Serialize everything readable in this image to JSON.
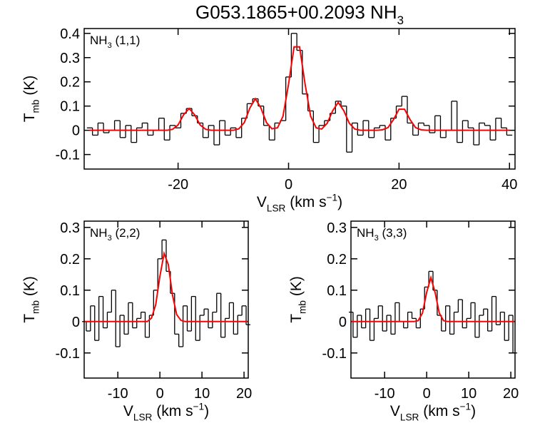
{
  "chart_data": [
    {
      "type": "line",
      "title": {
        "text": "G053.1865+00.2093 NH",
        "sub": "3"
      },
      "label": {
        "base": "NH",
        "sub": "3",
        "rest": " (1,1)"
      },
      "xlabel": {
        "base": "V",
        "sub": "LSR",
        "rest": " (km s",
        "sup": "−1",
        "end": ")"
      },
      "ylabel": {
        "base": "T",
        "sub": "mb",
        "rest": " (K)"
      },
      "xlim": [
        -37,
        41
      ],
      "xticks": [
        -20,
        0,
        20,
        40
      ],
      "ylim": [
        -0.16,
        0.42
      ],
      "yticks": [
        -0.1,
        0.0,
        0.1,
        0.2,
        0.3,
        0.4
      ],
      "x": [
        -36,
        -35,
        -34,
        -33,
        -32,
        -31,
        -30,
        -29,
        -28,
        -27,
        -26,
        -25,
        -24,
        -23,
        -22,
        -21,
        -20,
        -19,
        -18,
        -17,
        -16,
        -15,
        -14,
        -13,
        -12,
        -11,
        -10,
        -9,
        -8,
        -7,
        -6,
        -5,
        -4,
        -3,
        -2,
        -1,
        0,
        1,
        2,
        3,
        4,
        5,
        6,
        7,
        8,
        9,
        10,
        11,
        12,
        13,
        14,
        15,
        16,
        17,
        18,
        19,
        20,
        21,
        22,
        23,
        24,
        25,
        26,
        27,
        28,
        29,
        30,
        31,
        32,
        33,
        34,
        35,
        36,
        37,
        38,
        39,
        40
      ],
      "series": [
        {
          "color": "#000000",
          "step": true,
          "values": [
            0.01,
            -0.02,
            0.03,
            -0.01,
            0.0,
            0.04,
            -0.03,
            0.02,
            -0.05,
            0.01,
            0.03,
            -0.02,
            0.0,
            0.05,
            -0.04,
            0.02,
            0.01,
            0.07,
            0.09,
            0.06,
            0.03,
            -0.03,
            0.02,
            -0.06,
            0.04,
            -0.02,
            0.01,
            -0.03,
            0.05,
            0.11,
            0.13,
            0.1,
            0.02,
            -0.04,
            0.03,
            0.04,
            0.22,
            0.4,
            0.33,
            0.15,
            0.08,
            -0.05,
            0.02,
            0.04,
            0.07,
            0.12,
            0.1,
            -0.09,
            0.03,
            -0.02,
            0.04,
            -0.03,
            0.01,
            0.02,
            -0.04,
            0.05,
            0.1,
            0.14,
            0.03,
            -0.02,
            0.03,
            0.02,
            -0.01,
            0.06,
            -0.03,
            0.0,
            0.12,
            -0.05,
            0.04,
            0.01,
            -0.06,
            0.03,
            0.02,
            -0.04,
            0.05,
            0.01,
            -0.02
          ]
        },
        {
          "color": "#ff0000",
          "step": false,
          "values": [
            0,
            0,
            0,
            0,
            0,
            0,
            0,
            0,
            0,
            0,
            0,
            0,
            0,
            0,
            0,
            0.004,
            0.022,
            0.064,
            0.09,
            0.064,
            0.022,
            0.004,
            0,
            0,
            0,
            0,
            0,
            0.006,
            0.032,
            0.092,
            0.13,
            0.092,
            0.032,
            0.006,
            0.01,
            0.058,
            0.19,
            0.344,
            0.344,
            0.19,
            0.058,
            0.01,
            0.005,
            0.029,
            0.081,
            0.115,
            0.081,
            0.029,
            0.005,
            0,
            0,
            0,
            0,
            0.002,
            0.011,
            0.044,
            0.087,
            0.087,
            0.044,
            0.011,
            0.002,
            0,
            0,
            0,
            0,
            0,
            0,
            0,
            0,
            0,
            0,
            0,
            0,
            0,
            0,
            0,
            0
          ]
        }
      ]
    },
    {
      "type": "line",
      "label": {
        "base": "NH",
        "sub": "3",
        "rest": " (2,2)"
      },
      "xlabel": {
        "base": "V",
        "sub": "LSR",
        "rest": " (km s",
        "sup": "−1",
        "end": ")"
      },
      "ylabel": {
        "base": "T",
        "sub": "mb",
        "rest": " (K)"
      },
      "xlim": [
        -18,
        21
      ],
      "xticks": [
        -10,
        0,
        10,
        20
      ],
      "ylim": [
        -0.18,
        0.32
      ],
      "yticks": [
        -0.1,
        0.0,
        0.1,
        0.2,
        0.3
      ],
      "x": [
        -18,
        -17,
        -16,
        -15,
        -14,
        -13,
        -12,
        -11,
        -10,
        -9,
        -8,
        -7,
        -6,
        -5,
        -4,
        -3,
        -2,
        -1,
        0,
        1,
        2,
        3,
        4,
        5,
        6,
        7,
        8,
        9,
        10,
        11,
        12,
        13,
        14,
        15,
        16,
        17,
        18,
        19,
        20,
        21
      ],
      "series": [
        {
          "color": "#000000",
          "step": true,
          "values": [
            0.0,
            -0.03,
            0.05,
            -0.06,
            0.08,
            -0.02,
            0.03,
            0.1,
            -0.08,
            0.02,
            -0.04,
            0.06,
            -0.02,
            0.01,
            0.03,
            -0.05,
            0.02,
            0.1,
            0.2,
            0.26,
            0.16,
            0.09,
            -0.04,
            -0.08,
            0.05,
            -0.03,
            0.08,
            -0.06,
            0.02,
            0.04,
            -0.02,
            0.03,
            0.09,
            -0.05,
            0.01,
            0.06,
            -0.04,
            0.02,
            0.05,
            -0.01
          ]
        },
        {
          "color": "#ff0000",
          "step": false,
          "values": [
            0,
            0,
            0,
            0,
            0,
            0,
            0,
            0,
            0,
            0,
            0,
            0,
            0,
            0,
            0,
            0,
            0.011,
            0.053,
            0.144,
            0.217,
            0.182,
            0.084,
            0.022,
            0.004,
            0,
            0,
            0,
            0,
            0,
            0,
            0,
            0,
            0,
            0,
            0,
            0,
            0,
            0,
            0,
            0
          ]
        }
      ]
    },
    {
      "type": "line",
      "label": {
        "base": "NH",
        "sub": "3",
        "rest": " (3,3)"
      },
      "xlabel": {
        "base": "V",
        "sub": "LSR",
        "rest": " (km s",
        "sup": "−1",
        "end": ")"
      },
      "ylabel": {
        "base": "T",
        "sub": "mb",
        "rest": " (K)"
      },
      "xlim": [
        -18,
        21
      ],
      "xticks": [
        -10,
        0,
        10,
        20
      ],
      "ylim": [
        -0.18,
        0.32
      ],
      "yticks": [
        -0.1,
        0.0,
        0.1,
        0.2,
        0.3
      ],
      "x": [
        -18,
        -17,
        -16,
        -15,
        -14,
        -13,
        -12,
        -11,
        -10,
        -9,
        -8,
        -7,
        -6,
        -5,
        -4,
        -3,
        -2,
        -1,
        0,
        1,
        2,
        3,
        4,
        5,
        6,
        7,
        8,
        9,
        10,
        11,
        12,
        13,
        14,
        15,
        16,
        17,
        18,
        19,
        20,
        21
      ],
      "series": [
        {
          "color": "#000000",
          "step": true,
          "values": [
            0.03,
            -0.05,
            0.02,
            -0.02,
            0.04,
            -0.06,
            0.01,
            0.05,
            -0.03,
            0.02,
            -0.04,
            0.06,
            0.0,
            -0.02,
            0.03,
            0.01,
            -0.02,
            0.04,
            0.11,
            0.16,
            0.1,
            0.02,
            -0.03,
            0.05,
            -0.04,
            0.03,
            0.07,
            -0.02,
            0.01,
            0.06,
            -0.05,
            0.02,
            0.04,
            -0.03,
            0.08,
            -0.01,
            0.03,
            -0.06,
            0.02,
            -0.1
          ]
        },
        {
          "color": "#ff0000",
          "step": false,
          "values": [
            0,
            0,
            0,
            0,
            0,
            0,
            0,
            0,
            0,
            0,
            0,
            0,
            0,
            0,
            0,
            0,
            0.003,
            0.027,
            0.093,
            0.14,
            0.093,
            0.027,
            0.003,
            0,
            0,
            0,
            0,
            0,
            0,
            0,
            0,
            0,
            0,
            0,
            0,
            0,
            0,
            0,
            0,
            0
          ]
        }
      ]
    }
  ]
}
